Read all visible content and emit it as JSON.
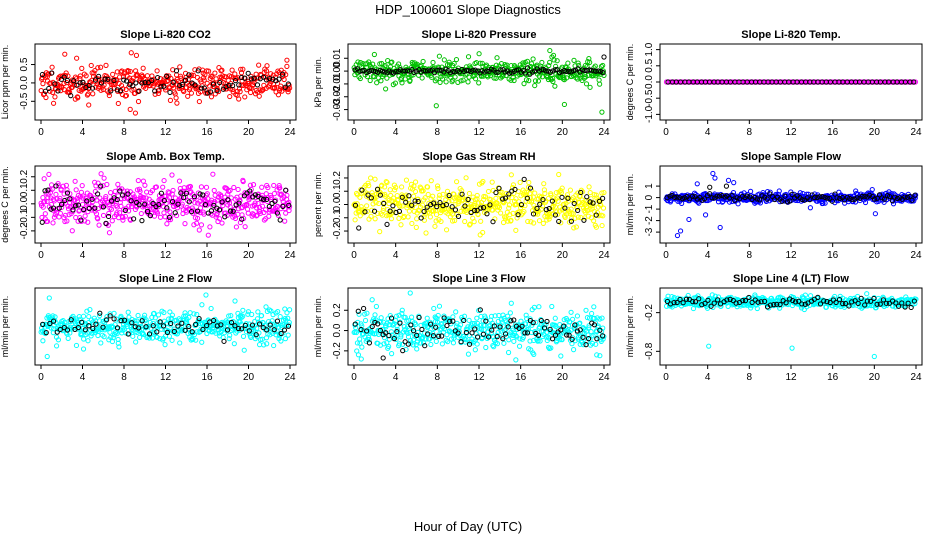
{
  "figure": {
    "title": "HDP_100601  Slope Diagnostics",
    "xlabel": "Hour of Day (UTC)"
  },
  "chart_data": [
    {
      "type": "scatter",
      "title": "Slope Li-820 CO2",
      "ylabel": "Licor ppm per min.",
      "color": "#ff0000",
      "xlim": [
        0,
        24
      ],
      "ylim": [
        -0.9,
        0.95
      ],
      "xticks": [
        0,
        4,
        8,
        12,
        16,
        20,
        24
      ],
      "xtick_labels": [
        "0",
        "4",
        "8",
        "12",
        "16",
        "20",
        "24"
      ],
      "yticks": [
        -0.5,
        0.0,
        0.5
      ],
      "ytick_labels": [
        "-0.5",
        "0.0",
        "0.5"
      ],
      "series": [
        {
          "color": "#ff0000",
          "center": 0.0,
          "spread": 0.22,
          "count": 420,
          "seed": 11,
          "outliers": [
            [
              8.7,
              0.82
            ],
            [
              9.2,
              0.75
            ],
            [
              9.1,
              -0.82
            ],
            [
              8.6,
              -0.72
            ],
            [
              4.6,
              -0.6
            ],
            [
              13.1,
              -0.55
            ],
            [
              23.7,
              0.45
            ]
          ]
        },
        {
          "color": "#000000",
          "center": -0.02,
          "spread": 0.18,
          "count": 80,
          "seed": 12,
          "outliers": []
        }
      ]
    },
    {
      "type": "scatter",
      "title": "Slope Li-820 Pressure",
      "ylabel": "kPa per min.",
      "color": "#00c000",
      "xlim": [
        0,
        24
      ],
      "ylim": [
        -0.035,
        0.018
      ],
      "xticks": [
        0,
        4,
        8,
        12,
        16,
        20,
        24
      ],
      "xtick_labels": [
        "0",
        "4",
        "8",
        "12",
        "16",
        "20",
        "24"
      ],
      "yticks": [
        -0.03,
        -0.02,
        -0.01,
        0.0,
        0.01
      ],
      "ytick_labels": [
        "-0.03",
        "-0.02",
        "-0.01",
        "0.00",
        "0.01"
      ],
      "series": [
        {
          "color": "#00c000",
          "center": 0.0,
          "spread": 0.0045,
          "count": 420,
          "seed": 21,
          "outliers": [
            [
              7.9,
              -0.027
            ],
            [
              20.2,
              -0.026
            ],
            [
              23.8,
              -0.032
            ],
            [
              18.8,
              0.016
            ],
            [
              19.0,
              0.011
            ]
          ]
        },
        {
          "color": "#000000",
          "center": 0.0,
          "spread": 0.0008,
          "count": 110,
          "seed": 22,
          "outliers": [
            [
              24.0,
              0.011
            ]
          ]
        }
      ]
    },
    {
      "type": "scatter",
      "title": "Slope Li-820 Temp.",
      "ylabel": "degrees C per min.",
      "color": "#ff00ff",
      "xlim": [
        0,
        24
      ],
      "ylim": [
        -1.05,
        1.05
      ],
      "xticks": [
        0,
        4,
        8,
        12,
        16,
        20,
        24
      ],
      "xtick_labels": [
        "0",
        "4",
        "8",
        "12",
        "16",
        "20",
        "24"
      ],
      "yticks": [
        -1.0,
        -0.5,
        0.0,
        0.5,
        1.0
      ],
      "ytick_labels": [
        "-1.0",
        "-0.5",
        "0.0",
        "0.5",
        "1.0"
      ],
      "series": [
        {
          "color": "#ff00ff",
          "center": 0.0,
          "spread": 0.0,
          "count": 200,
          "seed": 31,
          "outliers": []
        },
        {
          "color": "#000000",
          "center": 0.0,
          "spread": 0.0,
          "count": 60,
          "seed": 32,
          "outliers": []
        }
      ]
    },
    {
      "type": "scatter",
      "title": "Slope Amb. Box Temp.",
      "ylabel": "degrees C per min.",
      "color": "#ff00ff",
      "xlim": [
        0,
        24
      ],
      "ylim": [
        -0.26,
        0.25
      ],
      "xticks": [
        0,
        4,
        8,
        12,
        16,
        20,
        24
      ],
      "xtick_labels": [
        "0",
        "4",
        "8",
        "12",
        "16",
        "20",
        "24"
      ],
      "yticks": [
        -0.2,
        -0.1,
        0.0,
        0.1,
        0.2
      ],
      "ytick_labels": [
        "-0.2",
        "-0.1",
        "0.0",
        "0.1",
        "0.2"
      ],
      "series": [
        {
          "color": "#ff00ff",
          "center": 0.0,
          "spread": 0.085,
          "count": 520,
          "seed": 41,
          "outliers": []
        },
        {
          "color": "#000000",
          "center": 0.0,
          "spread": 0.07,
          "count": 90,
          "seed": 42,
          "outliers": []
        }
      ]
    },
    {
      "type": "scatter",
      "title": "Slope Gas Stream RH",
      "ylabel": "percent per min.",
      "color": "#ffff00",
      "xlim": [
        0,
        24
      ],
      "ylim": [
        -0.26,
        0.26
      ],
      "xticks": [
        0,
        4,
        8,
        12,
        16,
        20,
        24
      ],
      "xtick_labels": [
        "0",
        "4",
        "8",
        "12",
        "16",
        "20",
        "24"
      ],
      "yticks": [
        -0.2,
        -0.1,
        0.0,
        0.1,
        0.2
      ],
      "ytick_labels": [
        "-0.2",
        "-0.1",
        "0.0",
        "0.1",
        "0.2"
      ],
      "series": [
        {
          "color": "#ffff00",
          "center": 0.0,
          "spread": 0.085,
          "count": 520,
          "seed": 51,
          "outliers": []
        },
        {
          "color": "#000000",
          "center": 0.0,
          "spread": 0.07,
          "count": 80,
          "seed": 52,
          "outliers": []
        }
      ]
    },
    {
      "type": "scatter",
      "title": "Slope Sample Flow",
      "ylabel": "ml/min per min.",
      "color": "#0000ff",
      "xlim": [
        0,
        24
      ],
      "ylim": [
        -3.6,
        2.4
      ],
      "xticks": [
        0,
        4,
        8,
        12,
        16,
        20,
        24
      ],
      "xtick_labels": [
        "0",
        "4",
        "8",
        "12",
        "16",
        "20",
        "24"
      ],
      "yticks": [
        -3,
        -2,
        -1,
        0,
        1
      ],
      "ytick_labels": [
        "-3",
        "-2",
        "-1",
        "0",
        "1"
      ],
      "series": [
        {
          "color": "#0000ff",
          "center": 0.0,
          "spread": 0.22,
          "count": 460,
          "seed": 61,
          "outliers": [
            [
              1.1,
              -3.3
            ],
            [
              1.4,
              -2.9
            ],
            [
              2.2,
              -1.9
            ],
            [
              3.0,
              1.2
            ],
            [
              4.5,
              2.1
            ],
            [
              4.7,
              1.7
            ],
            [
              6.0,
              1.5
            ],
            [
              6.5,
              1.3
            ],
            [
              5.2,
              -2.6
            ],
            [
              3.8,
              -1.5
            ],
            [
              19.8,
              0.7
            ],
            [
              20.1,
              -1.4
            ]
          ]
        },
        {
          "color": "#000000",
          "center": 0.0,
          "spread": 0.15,
          "count": 100,
          "seed": 62,
          "outliers": [
            [
              4.2,
              0.9
            ],
            [
              5.8,
              1.0
            ]
          ]
        }
      ]
    },
    {
      "type": "scatter",
      "title": "Slope Line 2 Flow",
      "ylabel": "ml/min per min.",
      "color": "#00ffff",
      "xlim": [
        0,
        24
      ],
      "ylim": [
        -1.15,
        1.15
      ],
      "xticks": [
        0,
        4,
        8,
        12,
        16,
        20,
        24
      ],
      "xtick_labels": [
        "0",
        "4",
        "8",
        "12",
        "16",
        "20",
        "24"
      ],
      "yticks": [],
      "ytick_labels": [],
      "series": [
        {
          "color": "#00ffff",
          "center": 0.0,
          "spread": 0.25,
          "count": 480,
          "seed": 71,
          "outliers": [
            [
              0.8,
              0.95
            ],
            [
              15.9,
              1.05
            ],
            [
              18.7,
              0.85
            ],
            [
              0.6,
              -1.0
            ],
            [
              4.1,
              -0.75
            ]
          ]
        },
        {
          "color": "#000000",
          "center": 0.0,
          "spread": 0.15,
          "count": 70,
          "seed": 72,
          "outliers": []
        }
      ]
    },
    {
      "type": "scatter",
      "title": "Slope Line 3 Flow",
      "ylabel": "ml/min per min.",
      "color": "#00ffff",
      "xlim": [
        0,
        24
      ],
      "ylim": [
        -0.3,
        0.38
      ],
      "xticks": [
        0,
        4,
        8,
        12,
        16,
        20,
        24
      ],
      "xtick_labels": [
        "0",
        "4",
        "8",
        "12",
        "16",
        "20",
        "24"
      ],
      "yticks": [
        -0.2,
        0.0,
        0.2
      ],
      "ytick_labels": [
        "-0.2",
        "0.0",
        "0.2"
      ],
      "series": [
        {
          "color": "#00ffff",
          "center": 0.0,
          "spread": 0.1,
          "count": 480,
          "seed": 81,
          "outliers": [
            [
              5.4,
              0.37
            ],
            [
              0.7,
              -0.28
            ],
            [
              23.3,
              -0.24
            ]
          ]
        },
        {
          "color": "#000000",
          "center": 0.0,
          "spread": 0.08,
          "count": 90,
          "seed": 82,
          "outliers": [
            [
              2.8,
              -0.27
            ]
          ]
        }
      ]
    },
    {
      "type": "scatter",
      "title": "Slope Line 4 (LT) Flow",
      "ylabel": "ml/min per min.",
      "color": "#00ffff",
      "xlim": [
        0,
        24
      ],
      "ylim": [
        -0.95,
        0.12
      ],
      "xticks": [
        0,
        4,
        8,
        12,
        16,
        20,
        24
      ],
      "xtick_labels": [
        "0",
        "4",
        "8",
        "12",
        "16",
        "20",
        "24"
      ],
      "yticks": [
        -0.8,
        -0.2
      ],
      "ytick_labels": [
        "-0.8",
        "-0.2"
      ],
      "series": [
        {
          "color": "#00ffff",
          "center": -0.04,
          "spread": 0.045,
          "count": 460,
          "seed": 91,
          "outliers": [
            [
              4.1,
              -0.72
            ],
            [
              12.1,
              -0.75
            ],
            [
              20.0,
              -0.88
            ]
          ]
        },
        {
          "color": "#000000",
          "center": -0.04,
          "spread": 0.035,
          "count": 80,
          "seed": 92,
          "outliers": []
        }
      ]
    }
  ]
}
